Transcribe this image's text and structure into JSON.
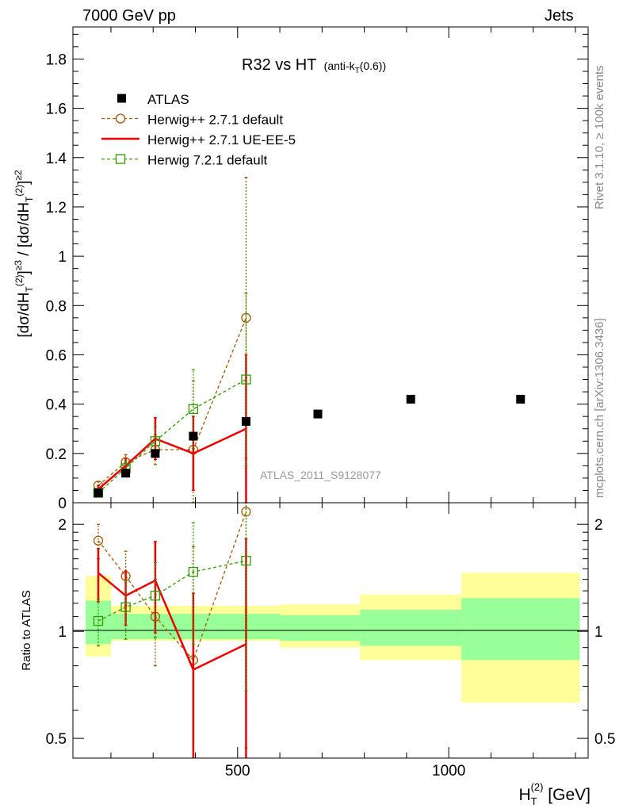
{
  "header": {
    "left": "7000 GeV pp",
    "right": "Jets"
  },
  "side": {
    "rivet": "Rivet 3.1.10, ≥ 100k events",
    "mcplots": "mcplots.cern.ch [arXiv:1306.3436]"
  },
  "chart_data": [
    {
      "type": "scatter",
      "title": "R32 vs HT",
      "title_suffix": "(anti-k",
      "title_sub": "T",
      "title_end": "(0.6))",
      "ylabel": "[dσ/dH_T^(2)]^≥3 / [dσ/dH_T^(2)]^≥2",
      "xlabel": "H_T^(2) [GeV]",
      "analysis_tag": "ATLAS_2011_S9128077",
      "xlim": [
        110,
        1330
      ],
      "ylim": [
        0,
        1.93
      ],
      "yticks": [
        "0",
        "0.2",
        "0.4",
        "0.6",
        "0.8",
        "1",
        "1.2",
        "1.4",
        "1.6",
        "1.8"
      ],
      "legend_position": "top-left",
      "data": {
        "name": "ATLAS",
        "x": [
          170,
          235,
          305,
          395,
          520,
          690,
          910,
          1170
        ],
        "y": [
          0.04,
          0.12,
          0.2,
          0.27,
          0.33,
          0.36,
          0.42,
          0.42
        ]
      },
      "series": [
        {
          "name": "Herwig++ 2.7.1 default",
          "color": "#a05a00",
          "style": "dashed",
          "marker": "circle",
          "x": [
            170,
            235,
            305,
            395,
            520
          ],
          "y": [
            0.07,
            0.165,
            0.215,
            0.215,
            0.75
          ],
          "err": [
            0.015,
            0.03,
            0.06,
            0.28,
            0.57
          ]
        },
        {
          "name": "Herwig++ 2.7.1 UE-EE-5",
          "color": "#ee0000",
          "style": "solid",
          "marker": "none",
          "x": [
            170,
            235,
            305,
            395,
            520
          ],
          "y": [
            0.055,
            0.15,
            0.26,
            0.2,
            0.3
          ],
          "err": [
            0.015,
            0.03,
            0.085,
            0.15,
            0.3
          ]
        },
        {
          "name": "Herwig 7.2.1 default",
          "color": "#339900",
          "style": "dashed",
          "marker": "square",
          "x": [
            170,
            235,
            305,
            395,
            520
          ],
          "y": [
            0.04,
            0.14,
            0.25,
            0.38,
            0.5
          ],
          "err": [
            0.015,
            0.03,
            0.06,
            0.16,
            0.35
          ]
        }
      ]
    },
    {
      "type": "scatter",
      "ylabel": "Ratio to ATLAS",
      "yscale": "log",
      "ylim": [
        0.44,
        2.3
      ],
      "yticks": [
        "0.5",
        "1",
        "2"
      ],
      "bins": [
        {
          "lo": 140,
          "hi": 200,
          "green": [
            0.92,
            1.22
          ],
          "yellow": [
            0.85,
            1.43
          ]
        },
        {
          "lo": 200,
          "hi": 270,
          "green": [
            0.95,
            1.12
          ],
          "yellow": [
            0.94,
            1.18
          ]
        },
        {
          "lo": 270,
          "hi": 340,
          "green": [
            0.95,
            1.12
          ],
          "yellow": [
            0.94,
            1.18
          ]
        },
        {
          "lo": 340,
          "hi": 450,
          "green": [
            0.95,
            1.12
          ],
          "yellow": [
            0.94,
            1.18
          ]
        },
        {
          "lo": 450,
          "hi": 600,
          "green": [
            0.95,
            1.12
          ],
          "yellow": [
            0.94,
            1.18
          ]
        },
        {
          "lo": 600,
          "hi": 790,
          "green": [
            0.94,
            1.11
          ],
          "yellow": [
            0.9,
            1.19
          ]
        },
        {
          "lo": 790,
          "hi": 1030,
          "green": [
            0.91,
            1.15
          ],
          "yellow": [
            0.83,
            1.27
          ]
        },
        {
          "lo": 1030,
          "hi": 1310,
          "green": [
            0.83,
            1.24
          ],
          "yellow": [
            0.63,
            1.46
          ]
        }
      ],
      "series": [
        {
          "name": "Herwig++ 2.7.1 default",
          "x": [
            170,
            235,
            305,
            395,
            520
          ],
          "y": [
            1.8,
            1.43,
            1.1,
            0.83,
            2.17
          ],
          "err": [
            0.2,
            0.25,
            0.3,
            0.9,
            1.7
          ]
        },
        {
          "name": "Herwig++ 2.7.1 UE-EE-5",
          "x": [
            170,
            235,
            305,
            395,
            520
          ],
          "y": [
            1.46,
            1.26,
            1.39,
            0.78,
            0.92
          ],
          "err": [
            0.25,
            0.22,
            0.4,
            0.5,
            0.9
          ]
        },
        {
          "name": "Herwig 7.2.1 default",
          "x": [
            170,
            235,
            305,
            395,
            520
          ],
          "y": [
            1.07,
            1.17,
            1.26,
            1.47,
            1.58
          ],
          "err": [
            0.16,
            0.22,
            0.3,
            0.55,
            0.9
          ]
        }
      ]
    }
  ],
  "xaxis": {
    "ticks": [
      500,
      1000
    ],
    "tick_labels": [
      "500",
      "1000"
    ]
  }
}
